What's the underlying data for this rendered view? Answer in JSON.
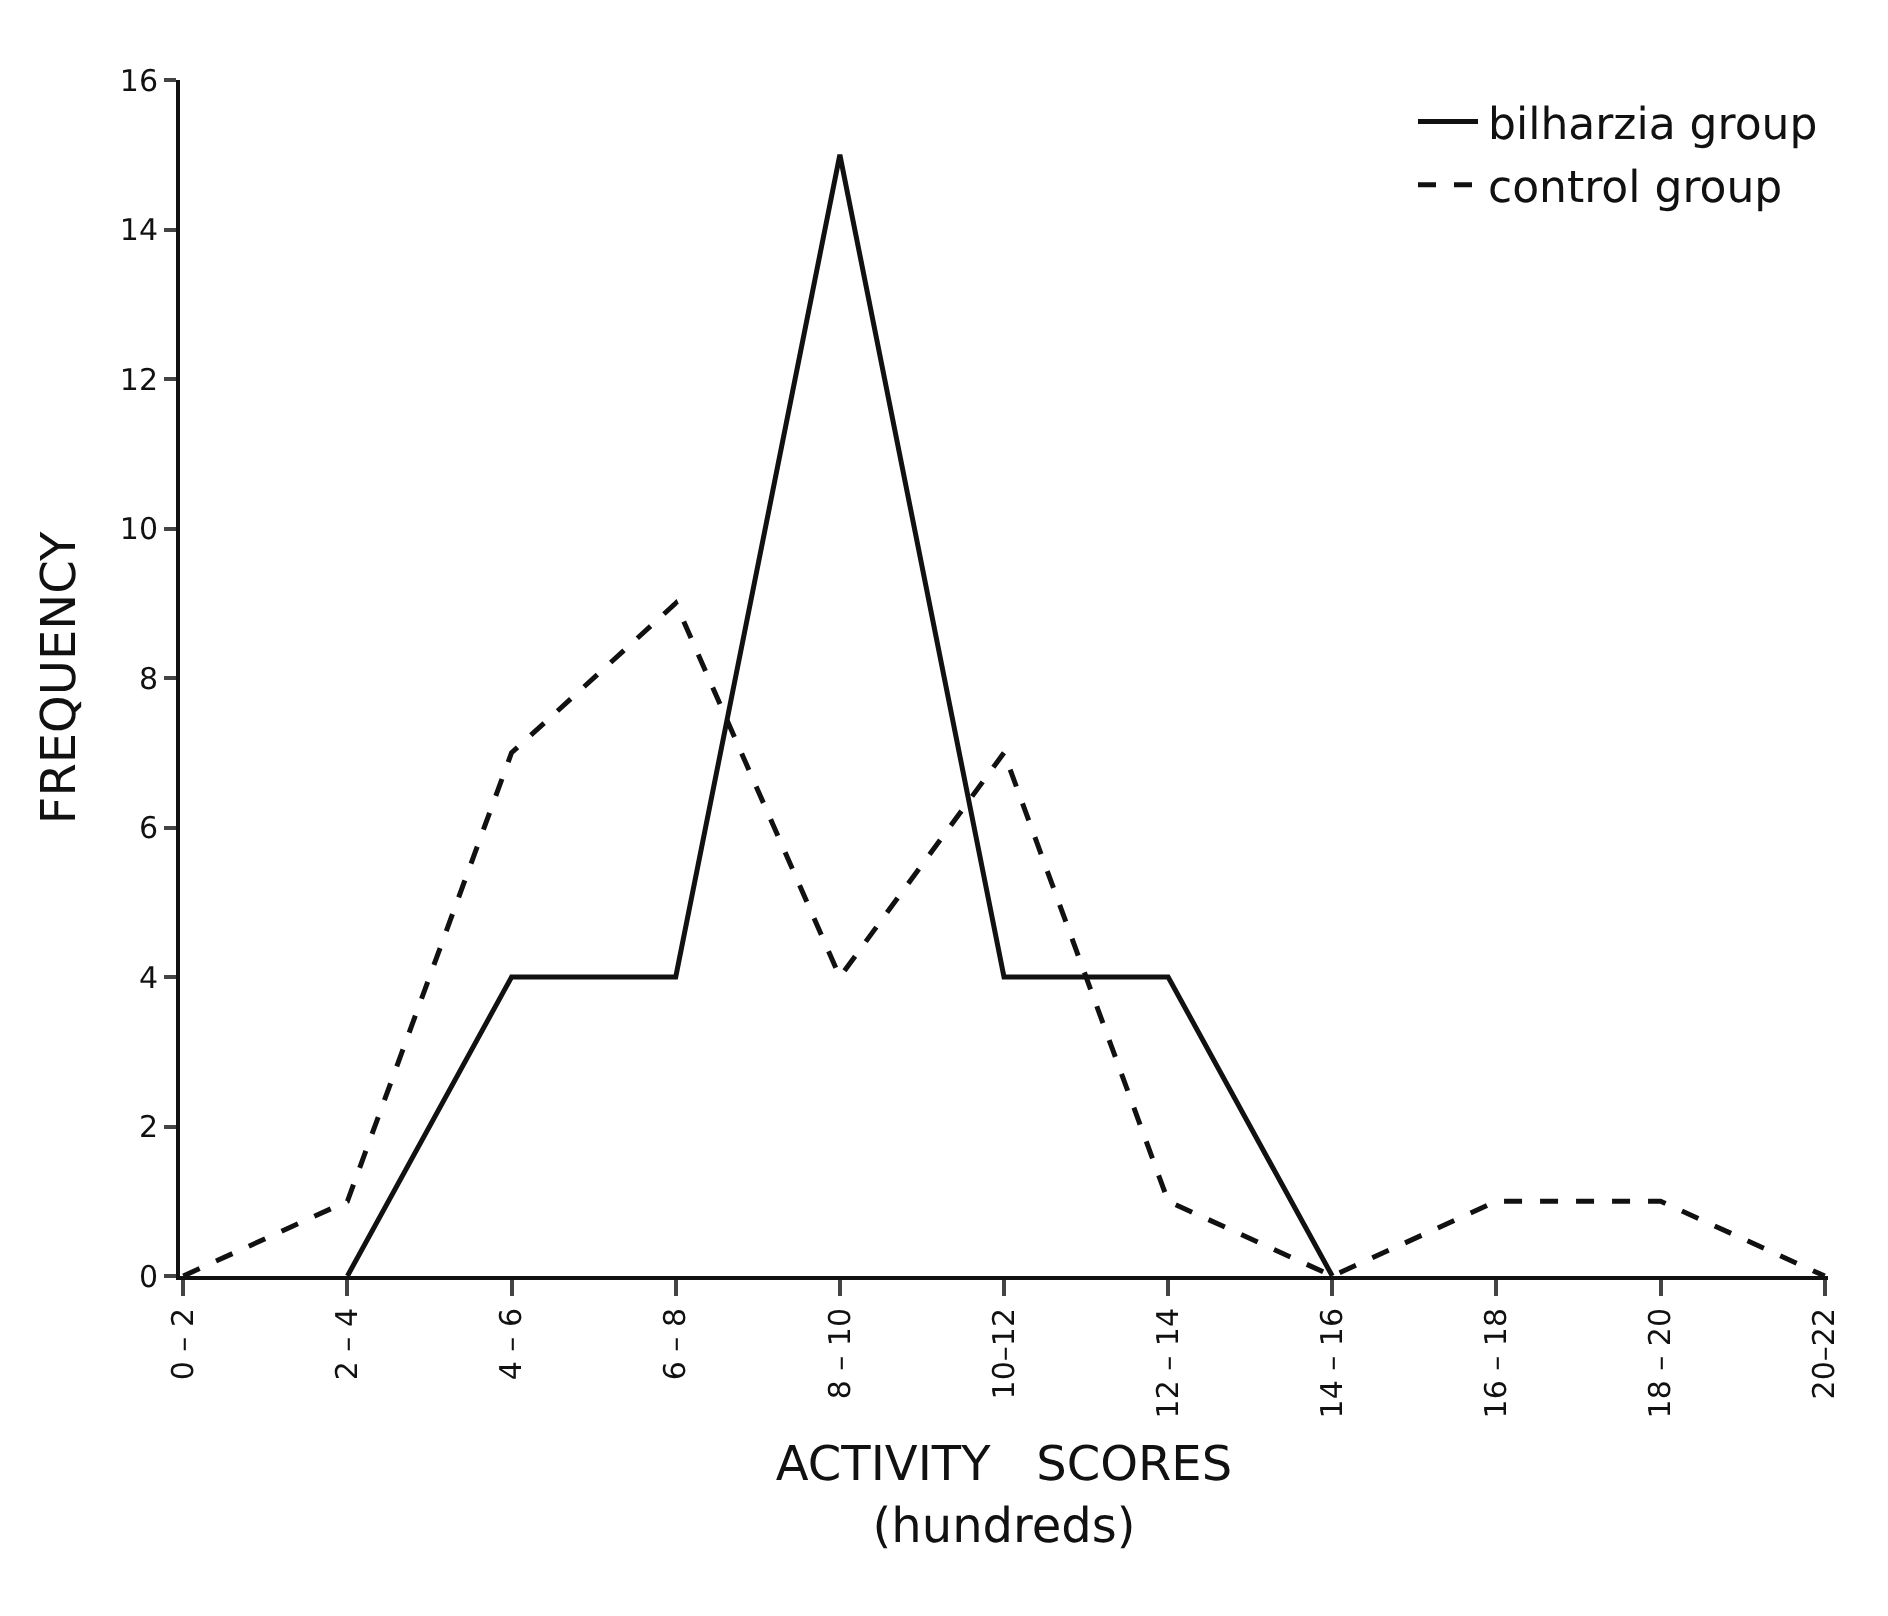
{
  "chart_data": {
    "type": "line",
    "xlabel": "ACTIVITY   SCORES\n(hundreds)",
    "ylabel": "FREQUENCY",
    "categories": [
      "0 – 2",
      "2 – 4",
      "4 – 6",
      "6 – 8",
      "8 – 10",
      "10–12",
      "12 – 14",
      "14 – 16",
      "16 – 18",
      "18 – 20",
      "20–22"
    ],
    "series": [
      {
        "name": "bilharzia group",
        "color": "#111111",
        "line_style": "solid",
        "values": [
          null,
          0,
          4,
          4,
          15,
          4,
          4,
          0,
          null,
          null,
          null
        ]
      },
      {
        "name": "control group",
        "color": "#111111",
        "line_style": "dashed",
        "values": [
          0,
          1,
          7,
          9,
          4,
          7,
          1,
          0,
          1,
          1,
          0
        ]
      }
    ],
    "ylim": [
      0,
      16
    ],
    "yticks": [
      0,
      2,
      4,
      6,
      8,
      10,
      12,
      14,
      16
    ],
    "legend": "top right",
    "marker": "none"
  }
}
